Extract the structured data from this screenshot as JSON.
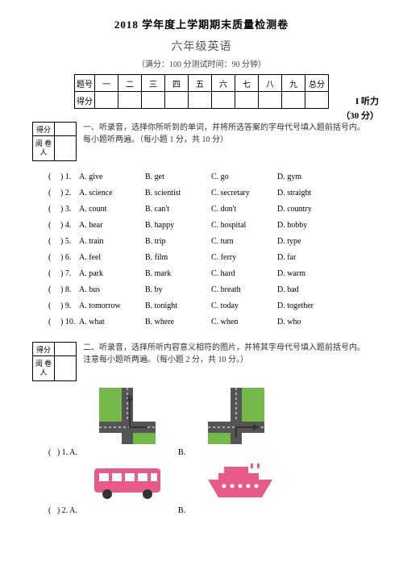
{
  "header": {
    "title": "2018 学年度上学期期末质量检测卷",
    "subtitle": "六年级英语",
    "meta": "（满分：100 分测试时间：90 分钟）"
  },
  "score_table": {
    "row1": [
      "题号",
      "一",
      "二",
      "三",
      "四",
      "五",
      "六",
      "七",
      "八",
      "九",
      "总分"
    ],
    "row2": [
      "得分",
      "",
      "",
      "",
      "",
      "",
      "",
      "",
      "",
      "",
      ""
    ]
  },
  "listening": {
    "label": "I 听力",
    "score": "（30 分）"
  },
  "mini_labels": {
    "r1": "得分",
    "r2a": "阅 卷",
    "r2b": "人"
  },
  "section1": {
    "instr": "一、听录音，选择你所听到的单词，并将所选答案的字母代号填入题前括号内。每小题听两遍。（每小题 1 分，共 10 分）",
    "items": [
      {
        "n": "1.",
        "a": "A. give",
        "b": "B. get",
        "c": "C. go",
        "d": "D. gym"
      },
      {
        "n": "2.",
        "a": "A. science",
        "b": "B. scientist",
        "c": "C. secretary",
        "d": "D. straight"
      },
      {
        "n": "3.",
        "a": "A. count",
        "b": "B. can't",
        "c": "C. don't",
        "d": "D. country"
      },
      {
        "n": "4.",
        "a": "A. hear",
        "b": "B. happy",
        "c": "C. hospital",
        "d": "D. hobby"
      },
      {
        "n": "5.",
        "a": "A. train",
        "b": "B. trip",
        "c": "C. turn",
        "d": "D. type"
      },
      {
        "n": "6.",
        "a": "A. feel",
        "b": "B. film",
        "c": "C. ferry",
        "d": "D. far"
      },
      {
        "n": "7.",
        "a": "A. park",
        "b": "B. mark",
        "c": "C. hard",
        "d": "D. warm"
      },
      {
        "n": "8.",
        "a": "A. bus",
        "b": "B. by",
        "c": "C. breath",
        "d": "D. bad"
      },
      {
        "n": "9.",
        "a": "A. tomorrow",
        "b": "B. tonight",
        "c": "C. today",
        "d": "D. together"
      },
      {
        "n": "10.",
        "a": "A. what",
        "b": "B. where",
        "c": "C. when",
        "d": "D. who"
      }
    ]
  },
  "section2": {
    "instr": "二、听录音，选择所听内容意义相符的图片，并将其字母代号填入题前括号内。注意每小题听两遍。（每小题 2 分，共 10 分。）",
    "q1": {
      "n": "1.",
      "a": "A.",
      "b": "B."
    },
    "q2": {
      "n": "2.",
      "a": "A.",
      "b": "B."
    }
  },
  "svg": {
    "road_color": "#555555",
    "green": "#74b84a",
    "pink": "#e85a8a",
    "arrow": "#333333"
  }
}
